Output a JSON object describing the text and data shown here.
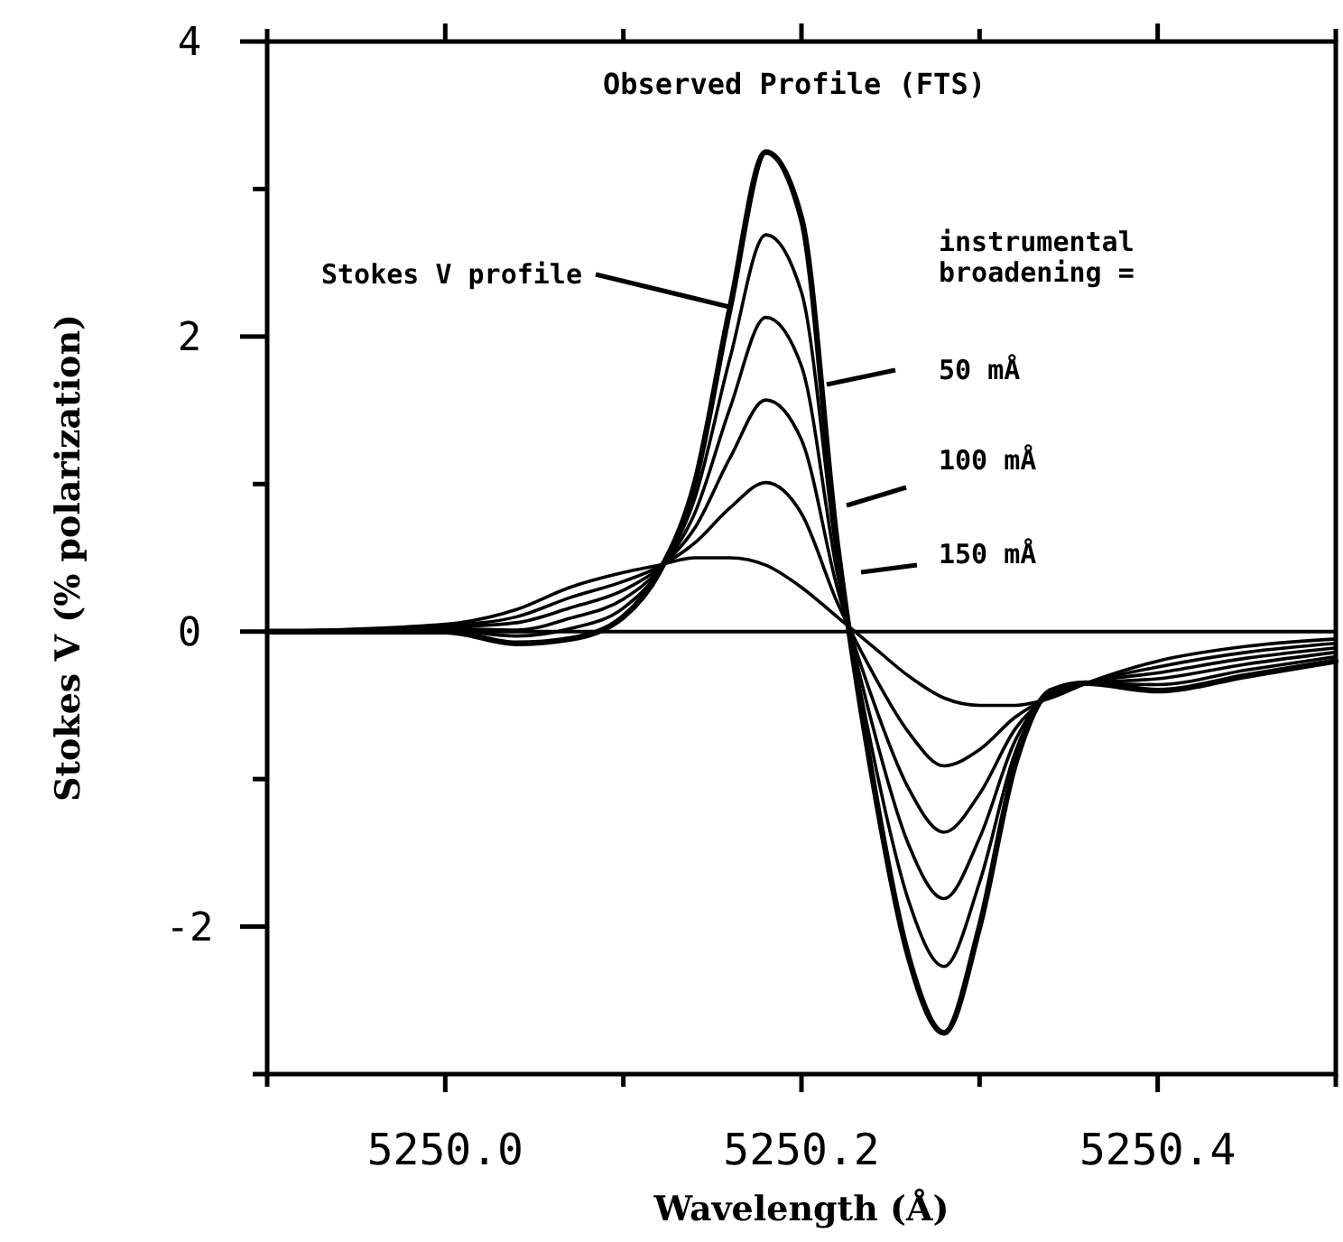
{
  "chart_data": {
    "type": "line",
    "title": "Observed Profile (FTS)",
    "xlabel": "Wavelength (Å)",
    "ylabel": "Stokes V (% polarization)",
    "x": [
      5249.9,
      5250.0,
      5250.04,
      5250.07,
      5250.1,
      5250.12,
      5250.14,
      5250.16,
      5250.18,
      5250.2,
      5250.22,
      5250.24,
      5250.26,
      5250.28,
      5250.3,
      5250.32,
      5250.34,
      5250.36,
      5250.4,
      5250.45,
      5250.5
    ],
    "series": [
      {
        "color": "#000000",
        "values": [
          0,
          0,
          -0.08,
          -0.05,
          0.1,
          0.4,
          1.0,
          2.2,
          3.25,
          2.8,
          0.6,
          -1.0,
          -2.2,
          -2.72,
          -2.0,
          -0.9,
          -0.4,
          -0.35,
          -0.4,
          -0.3,
          -0.2
        ]
      },
      {
        "color": "#000000",
        "values": [
          0,
          0.01,
          -0.03,
          0.02,
          0.16,
          0.41,
          0.9,
          1.86,
          2.69,
          2.3,
          0.5,
          -0.82,
          -1.82,
          -2.27,
          -1.7,
          -0.82,
          -0.41,
          -0.35,
          -0.36,
          -0.26,
          -0.17
        ]
      },
      {
        "color": "#000000",
        "values": [
          0,
          0.02,
          0.01,
          0.09,
          0.22,
          0.42,
          0.8,
          1.52,
          2.13,
          1.8,
          0.4,
          -0.64,
          -1.44,
          -1.81,
          -1.4,
          -0.74,
          -0.42,
          -0.35,
          -0.32,
          -0.22,
          -0.14
        ]
      },
      {
        "color": "#000000",
        "values": [
          0,
          0.03,
          0.06,
          0.16,
          0.28,
          0.43,
          0.7,
          1.18,
          1.57,
          1.3,
          0.3,
          -0.46,
          -1.06,
          -1.36,
          -1.1,
          -0.66,
          -0.43,
          -0.35,
          -0.28,
          -0.18,
          -0.11
        ]
      },
      {
        "color": "#000000",
        "values": [
          0,
          0.04,
          0.1,
          0.23,
          0.34,
          0.44,
          0.6,
          0.84,
          1.01,
          0.8,
          0.2,
          -0.28,
          -0.68,
          -0.91,
          -0.8,
          -0.58,
          -0.44,
          -0.35,
          -0.24,
          -0.14,
          -0.08
        ]
      },
      {
        "color": "#000000",
        "values": [
          0,
          0.05,
          0.15,
          0.3,
          0.4,
          0.45,
          0.5,
          0.5,
          0.45,
          0.3,
          0.1,
          -0.1,
          -0.3,
          -0.45,
          -0.5,
          -0.5,
          -0.45,
          -0.35,
          -0.2,
          -0.1,
          -0.05
        ]
      }
    ],
    "xlim": [
      5249.9,
      5250.5
    ],
    "xticks": [
      {
        "value": 5249.9,
        "label": null
      },
      "5250.0",
      {
        "value": 5250.1,
        "label": null
      },
      5250.2,
      {
        "value": 5250.3,
        "label": null
      },
      5250.4,
      {
        "value": 5250.5,
        "label": null
      }
    ],
    "ylim": [
      -3,
      4
    ],
    "yticks": [
      {
        "value": -3,
        "label": null
      },
      -2,
      {
        "value": -1,
        "label": null
      },
      0,
      {
        "value": 1,
        "label": null
      },
      2,
      {
        "value": 3,
        "label": null
      },
      4
    ],
    "ref_lines": [
      {
        "axis": "y",
        "value": 0,
        "color": "#000000"
      }
    ],
    "annotations": [
      {
        "text": "Stokes V profile",
        "x": 5250.16,
        "y": 2.2
      },
      "instrumental broadening =",
      "50 mÅ",
      "100 mÅ",
      "150 mÅ"
    ],
    "grid": false,
    "marker": "none",
    "line_style": "solid"
  }
}
